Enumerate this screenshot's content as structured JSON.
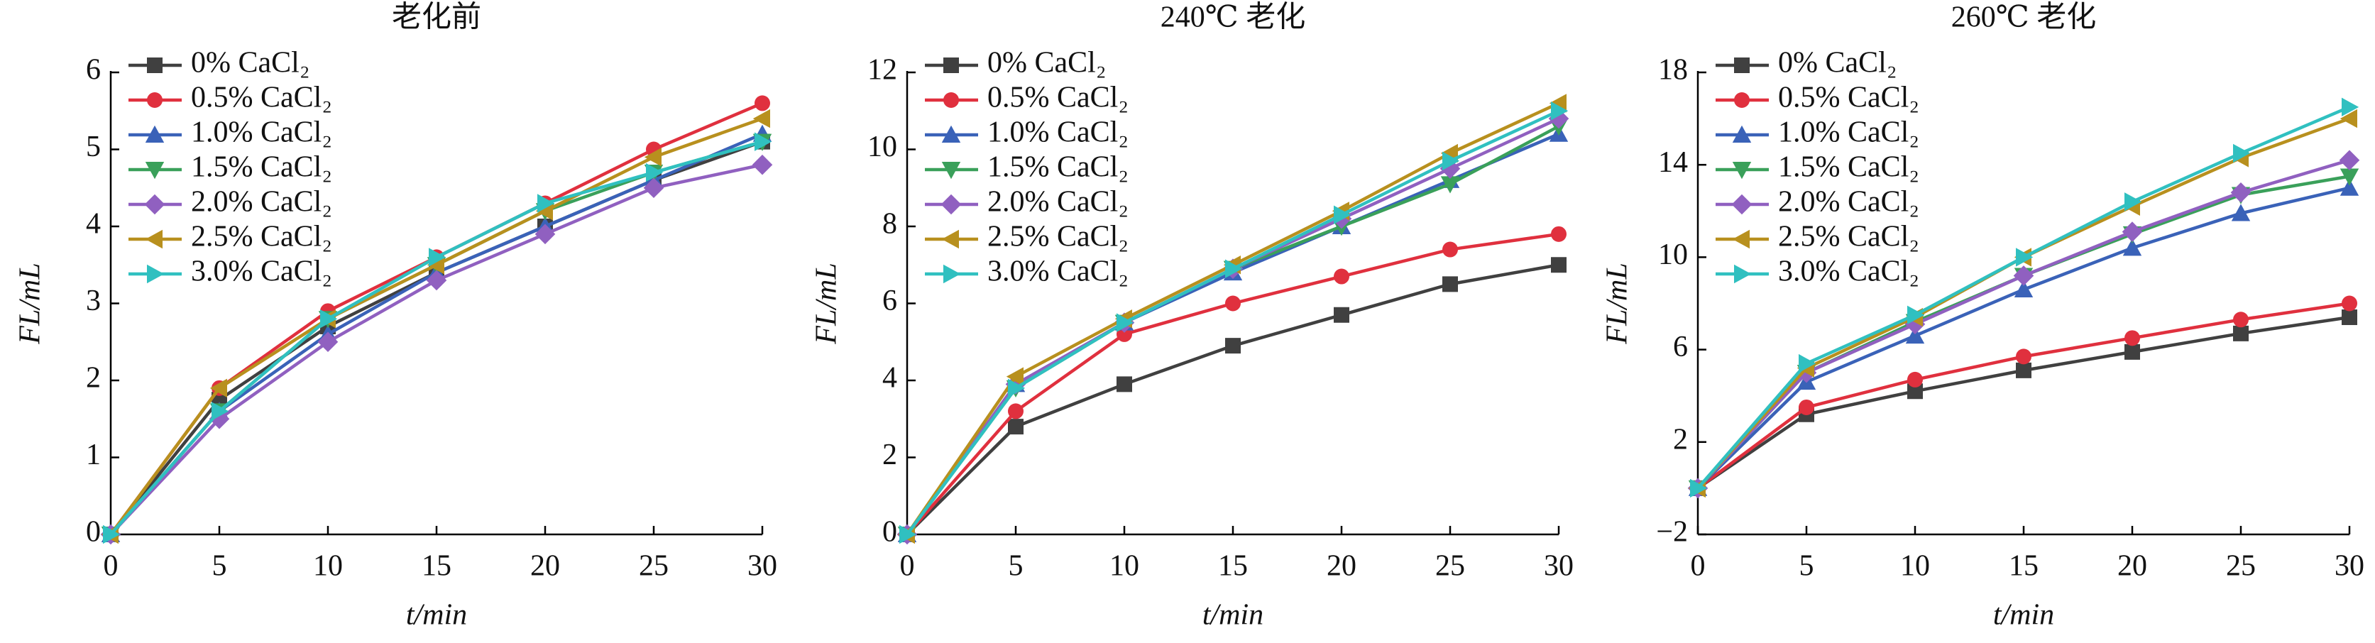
{
  "chart_data": [
    {
      "type": "line",
      "title": "老化前",
      "x_label": "t/min",
      "y_label": "FL/mL",
      "x": [
        0,
        5,
        10,
        15,
        20,
        25,
        30
      ],
      "xlim": [
        0,
        30
      ],
      "xticks": [
        0,
        5,
        10,
        15,
        20,
        25,
        30
      ],
      "ylim": [
        0,
        6
      ],
      "yticks": [
        0,
        1,
        2,
        3,
        4,
        5,
        6
      ],
      "legend": "upper-left",
      "series": [
        {
          "name": "0% CaCl₂",
          "color": "#404040",
          "marker": "square",
          "values": [
            0,
            1.75,
            2.7,
            3.4,
            4.0,
            4.6,
            5.1
          ]
        },
        {
          "name": "0.5% CaCl₂",
          "color": "#e0303e",
          "marker": "circle",
          "values": [
            0,
            1.9,
            2.9,
            3.6,
            4.3,
            5.0,
            5.6
          ]
        },
        {
          "name": "1.0% CaCl₂",
          "color": "#3a62b8",
          "marker": "triangle-up",
          "values": [
            0,
            1.6,
            2.6,
            3.4,
            4.0,
            4.6,
            5.2
          ]
        },
        {
          "name": "1.5% CaCl₂",
          "color": "#3aa05a",
          "marker": "triangle-down",
          "values": [
            0,
            1.6,
            2.8,
            3.5,
            4.2,
            4.7,
            5.1
          ]
        },
        {
          "name": "2.0% CaCl₂",
          "color": "#9060c0",
          "marker": "diamond",
          "values": [
            0,
            1.5,
            2.5,
            3.3,
            3.9,
            4.5,
            4.8
          ]
        },
        {
          "name": "2.5% CaCl₂",
          "color": "#b8901e",
          "marker": "triangle-left",
          "values": [
            0,
            1.9,
            2.8,
            3.5,
            4.2,
            4.9,
            5.4
          ]
        },
        {
          "name": "3.0% CaCl₂",
          "color": "#30c0c0",
          "marker": "triangle-right",
          "values": [
            0,
            1.6,
            2.8,
            3.6,
            4.3,
            4.7,
            5.1
          ]
        }
      ]
    },
    {
      "type": "line",
      "title": "240℃ 老化",
      "x_label": "t/min",
      "y_label": "FL/mL",
      "x": [
        0,
        5,
        10,
        15,
        20,
        25,
        30
      ],
      "xlim": [
        0,
        30
      ],
      "xticks": [
        0,
        5,
        10,
        15,
        20,
        25,
        30
      ],
      "ylim": [
        0,
        12
      ],
      "yticks": [
        0,
        2,
        4,
        6,
        8,
        10,
        12
      ],
      "legend": "upper-left",
      "series": [
        {
          "name": "0% CaCl₂",
          "color": "#404040",
          "marker": "square",
          "values": [
            0,
            2.8,
            3.9,
            4.9,
            5.7,
            6.5,
            7.0
          ]
        },
        {
          "name": "0.5% CaCl₂",
          "color": "#e0303e",
          "marker": "circle",
          "values": [
            0,
            3.2,
            5.2,
            6.0,
            6.7,
            7.4,
            7.8
          ]
        },
        {
          "name": "1.0% CaCl₂",
          "color": "#3a62b8",
          "marker": "triangle-up",
          "values": [
            0,
            3.9,
            5.5,
            6.8,
            8.0,
            9.2,
            10.4
          ]
        },
        {
          "name": "1.5% CaCl₂",
          "color": "#3aa05a",
          "marker": "triangle-down",
          "values": [
            0,
            3.8,
            5.5,
            6.9,
            8.0,
            9.1,
            10.6
          ]
        },
        {
          "name": "2.0% CaCl₂",
          "color": "#9060c0",
          "marker": "diamond",
          "values": [
            0,
            3.9,
            5.5,
            6.9,
            8.2,
            9.5,
            10.8
          ]
        },
        {
          "name": "2.5% CaCl₂",
          "color": "#b8901e",
          "marker": "triangle-left",
          "values": [
            0,
            4.1,
            5.6,
            7.0,
            8.4,
            9.9,
            11.2
          ]
        },
        {
          "name": "3.0% CaCl₂",
          "color": "#30c0c0",
          "marker": "triangle-right",
          "values": [
            0,
            3.8,
            5.5,
            6.9,
            8.3,
            9.7,
            11.0
          ]
        }
      ]
    },
    {
      "type": "line",
      "title": "260℃ 老化",
      "x_label": "t/min",
      "y_label": "FL/mL",
      "x": [
        0,
        5,
        10,
        15,
        20,
        25,
        30
      ],
      "xlim": [
        0,
        30
      ],
      "xticks": [
        0,
        5,
        10,
        15,
        20,
        25,
        30
      ],
      "ylim": [
        -2,
        18
      ],
      "yticks": [
        {
          "value": -2,
          "label": "−2"
        },
        2,
        6,
        10,
        14,
        18
      ],
      "legend": "upper-left",
      "series": [
        {
          "name": "0% CaCl₂",
          "color": "#404040",
          "marker": "square",
          "values": [
            0,
            3.2,
            4.2,
            5.1,
            5.9,
            6.7,
            7.4
          ]
        },
        {
          "name": "0.5% CaCl₂",
          "color": "#e0303e",
          "marker": "circle",
          "values": [
            0,
            3.5,
            4.7,
            5.7,
            6.5,
            7.3,
            8.0
          ]
        },
        {
          "name": "1.0% CaCl₂",
          "color": "#3a62b8",
          "marker": "triangle-up",
          "values": [
            0,
            4.6,
            6.6,
            8.6,
            10.4,
            11.9,
            13.0
          ]
        },
        {
          "name": "1.5% CaCl₂",
          "color": "#3aa05a",
          "marker": "triangle-down",
          "values": [
            0,
            5.0,
            7.2,
            9.2,
            11.0,
            12.7,
            13.5
          ]
        },
        {
          "name": "2.0% CaCl₂",
          "color": "#9060c0",
          "marker": "diamond",
          "values": [
            0,
            5.0,
            7.1,
            9.2,
            11.1,
            12.8,
            14.2
          ]
        },
        {
          "name": "2.5% CaCl₂",
          "color": "#b8901e",
          "marker": "triangle-left",
          "values": [
            0,
            5.2,
            7.4,
            10.0,
            12.2,
            14.3,
            16.0
          ]
        },
        {
          "name": "3.0% CaCl₂",
          "color": "#30c0c0",
          "marker": "triangle-right",
          "values": [
            0,
            5.4,
            7.5,
            10.0,
            12.4,
            14.5,
            16.5
          ]
        }
      ]
    }
  ]
}
